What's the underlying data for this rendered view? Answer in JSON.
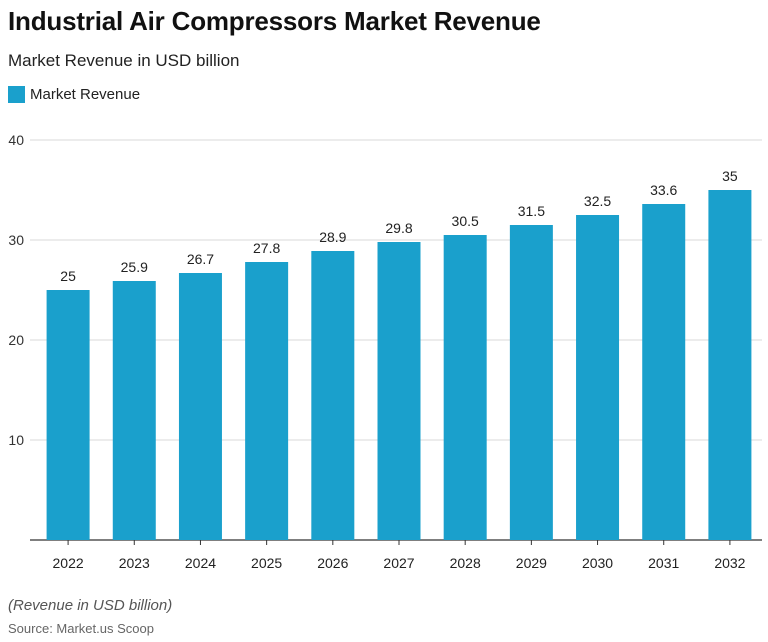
{
  "header": {
    "title": "Industrial Air Compressors Market Revenue",
    "subtitle": "Market Revenue in USD billion"
  },
  "legend": {
    "label": "Market Revenue"
  },
  "footer": {
    "note": "(Revenue in USD billion)",
    "source": "Source: Market.us Scoop"
  },
  "colors": {
    "bar": "#1aa0cc",
    "grid": "#d9d9d9",
    "axis": "#333333"
  },
  "chart_data": {
    "type": "bar",
    "categories": [
      "2022",
      "2023",
      "2024",
      "2025",
      "2026",
      "2027",
      "2028",
      "2029",
      "2030",
      "2031",
      "2032"
    ],
    "series": [
      {
        "name": "Market Revenue",
        "values": [
          25,
          25.9,
          26.7,
          27.8,
          28.9,
          29.8,
          30.5,
          31.5,
          32.5,
          33.6,
          35
        ]
      }
    ],
    "title": "Industrial Air Compressors Market Revenue",
    "subtitle": "Market Revenue in USD billion",
    "xlabel": "",
    "ylabel": "",
    "ylim": [
      0,
      40
    ],
    "yticks": [
      10,
      20,
      30,
      40
    ],
    "grid": true,
    "legend_position": "top-left",
    "data_labels": true
  }
}
